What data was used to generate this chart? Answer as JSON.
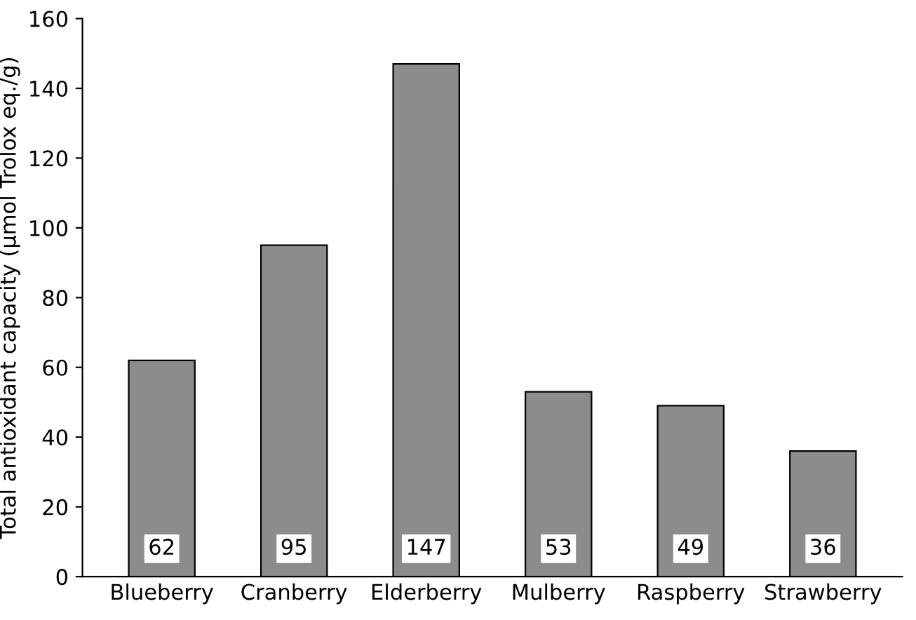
{
  "chart_data": {
    "type": "bar",
    "ylabel": "Total antioxidant capacity (µmol Trolox eq./g)",
    "categories": [
      "Blueberry",
      "Cranberry",
      "Elderberry",
      "Mulberry",
      "Raspberry",
      "Strawberry"
    ],
    "values": [
      62,
      95,
      147,
      53,
      49,
      36
    ],
    "color": "#8c8c8c",
    "ylim": [
      0,
      160
    ],
    "yticks": [
      0,
      20,
      40,
      60,
      80,
      100,
      120,
      140,
      160
    ],
    "data_labels": true,
    "grid": false,
    "legend": false
  }
}
